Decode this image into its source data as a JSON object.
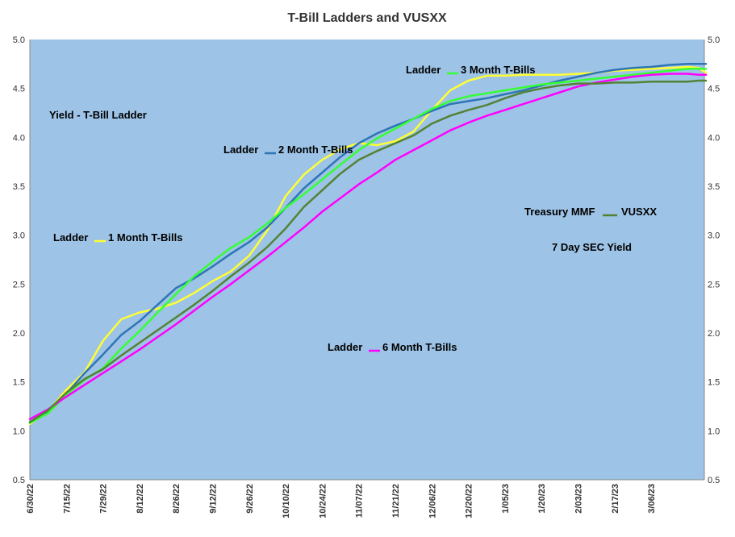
{
  "chart_data": {
    "type": "line",
    "title": "T-Bill Ladders and VUSXX",
    "xlabel": "",
    "ylabel": "",
    "ylim": [
      0.5,
      5.0
    ],
    "y_ticks": [
      "0.5",
      "1.0",
      "1.5",
      "2.0",
      "2.5",
      "3.0",
      "3.5",
      "4.0",
      "4.5",
      "5.0"
    ],
    "y_tick_values": [
      0.5,
      1.0,
      1.5,
      2.0,
      2.5,
      3.0,
      3.5,
      4.0,
      4.5,
      5.0
    ],
    "x_ticks": [
      "6/30/22",
      "7/15/22",
      "7/29/22",
      "8/12/22",
      "8/26/22",
      "9/12/22",
      "9/26/22",
      "10/10/22",
      "10/24/22",
      "11/07/22",
      "11/21/22",
      "12/06/22",
      "12/20/22",
      "1/05/23",
      "1/20/23",
      "2/03/23",
      "2/17/23",
      "3/06/23"
    ],
    "grid": false,
    "plot_background": "#9DC3E6",
    "x_index_range": [
      0,
      18.5
    ],
    "series": [
      {
        "name": "1 Month T-Bills",
        "color": "#FFFF33",
        "x": [
          0,
          0.5,
          1,
          1.5,
          2,
          2.5,
          3,
          3.5,
          4,
          4.5,
          5,
          5.5,
          6,
          6.5,
          7,
          7.5,
          8,
          8.5,
          9,
          9.5,
          10,
          10.5,
          11,
          11.5,
          12,
          12.5,
          13,
          13.5,
          14,
          14.5,
          15,
          15.5,
          16,
          16.5,
          17,
          17.5,
          18,
          18.3,
          18.5
        ],
        "y": [
          1.07,
          1.2,
          1.42,
          1.6,
          1.92,
          2.14,
          2.21,
          2.25,
          2.31,
          2.41,
          2.53,
          2.63,
          2.79,
          3.05,
          3.4,
          3.62,
          3.77,
          3.88,
          3.94,
          3.92,
          3.96,
          4.06,
          4.28,
          4.48,
          4.58,
          4.63,
          4.63,
          4.64,
          4.64,
          4.64,
          4.65,
          4.66,
          4.68,
          4.69,
          4.7,
          4.71,
          4.72,
          4.71,
          4.66
        ]
      },
      {
        "name": "2 Month T-Bills",
        "color": "#2E75B6",
        "x": [
          0,
          0.5,
          1,
          1.5,
          2,
          2.5,
          3,
          3.5,
          4,
          4.5,
          5,
          5.5,
          6,
          6.5,
          7,
          7.5,
          8,
          8.5,
          9,
          9.5,
          10,
          10.5,
          11,
          11.5,
          12,
          12.5,
          13,
          13.5,
          14,
          14.5,
          15,
          15.5,
          16,
          16.5,
          17,
          17.5,
          18,
          18.3,
          18.5
        ],
        "y": [
          1.09,
          1.19,
          1.38,
          1.59,
          1.78,
          1.98,
          2.12,
          2.29,
          2.46,
          2.56,
          2.68,
          2.81,
          2.93,
          3.08,
          3.28,
          3.48,
          3.64,
          3.8,
          3.94,
          4.04,
          4.12,
          4.19,
          4.27,
          4.34,
          4.37,
          4.4,
          4.44,
          4.48,
          4.53,
          4.58,
          4.62,
          4.66,
          4.69,
          4.71,
          4.72,
          4.74,
          4.75,
          4.75,
          4.75
        ]
      },
      {
        "name": "3 Month T-Bills",
        "color": "#33FF33",
        "x": [
          0,
          0.5,
          1,
          1.5,
          2,
          2.5,
          3,
          3.5,
          4,
          4.5,
          5,
          5.5,
          6,
          6.5,
          7,
          7.5,
          8,
          8.5,
          9,
          9.5,
          10,
          10.5,
          11,
          11.5,
          12,
          12.5,
          13,
          13.5,
          14,
          14.5,
          15,
          15.5,
          16,
          16.5,
          17,
          17.5,
          18,
          18.3,
          18.5
        ],
        "y": [
          1.08,
          1.18,
          1.37,
          1.52,
          1.64,
          1.84,
          2.02,
          2.21,
          2.4,
          2.58,
          2.73,
          2.87,
          2.98,
          3.12,
          3.28,
          3.42,
          3.57,
          3.72,
          3.87,
          3.99,
          4.09,
          4.19,
          4.29,
          4.37,
          4.42,
          4.45,
          4.48,
          4.51,
          4.54,
          4.56,
          4.58,
          4.6,
          4.62,
          4.64,
          4.66,
          4.68,
          4.7,
          4.7,
          4.7
        ]
      },
      {
        "name": "6 Month T-Bills",
        "color": "#FF00FF",
        "x": [
          0,
          0.5,
          1,
          1.5,
          2,
          2.5,
          3,
          3.5,
          4,
          4.5,
          5,
          5.5,
          6,
          6.5,
          7,
          7.5,
          8,
          8.5,
          9,
          9.5,
          10,
          10.5,
          11,
          11.5,
          12,
          12.5,
          13,
          13.5,
          14,
          14.5,
          15,
          15.5,
          16,
          16.5,
          17,
          17.5,
          18,
          18.3,
          18.5
        ],
        "y": [
          1.12,
          1.22,
          1.35,
          1.47,
          1.59,
          1.71,
          1.83,
          1.96,
          2.09,
          2.23,
          2.37,
          2.5,
          2.64,
          2.78,
          2.93,
          3.08,
          3.24,
          3.38,
          3.52,
          3.64,
          3.77,
          3.87,
          3.97,
          4.07,
          4.15,
          4.22,
          4.28,
          4.34,
          4.4,
          4.46,
          4.52,
          4.56,
          4.59,
          4.62,
          4.64,
          4.65,
          4.65,
          4.64,
          4.64
        ]
      },
      {
        "name": "VUSXX",
        "color": "#548235",
        "x": [
          0,
          0.5,
          1,
          1.5,
          2,
          2.5,
          3,
          3.5,
          4,
          4.5,
          5,
          5.5,
          6,
          6.5,
          7,
          7.5,
          8,
          8.5,
          9,
          9.5,
          10,
          10.5,
          11,
          11.5,
          12,
          12.5,
          13,
          13.5,
          14,
          14.5,
          15,
          15.5,
          16,
          16.5,
          17,
          17.5,
          18,
          18.3,
          18.5
        ],
        "y": [
          1.09,
          1.21,
          1.39,
          1.53,
          1.63,
          1.77,
          1.9,
          2.03,
          2.16,
          2.29,
          2.43,
          2.58,
          2.72,
          2.88,
          3.07,
          3.29,
          3.46,
          3.63,
          3.77,
          3.86,
          3.94,
          4.02,
          4.14,
          4.22,
          4.28,
          4.33,
          4.4,
          4.46,
          4.5,
          4.53,
          4.55,
          4.55,
          4.56,
          4.56,
          4.57,
          4.57,
          4.57,
          4.58,
          4.58
        ]
      }
    ],
    "annotations": [
      {
        "text": "Yield - T-Bill Ladder"
      },
      {
        "text": "Ladder",
        "series": "1 Month T-Bills"
      },
      {
        "text": "Ladder",
        "series": "2 Month T-Bills"
      },
      {
        "text": "Ladder",
        "series": "3 Month T-Bills"
      },
      {
        "text": "Ladder",
        "series": "6 Month T-Bills"
      },
      {
        "text": "Treasury MMF",
        "series": "VUSXX"
      },
      {
        "text": "7 Day SEC Yield"
      }
    ]
  }
}
